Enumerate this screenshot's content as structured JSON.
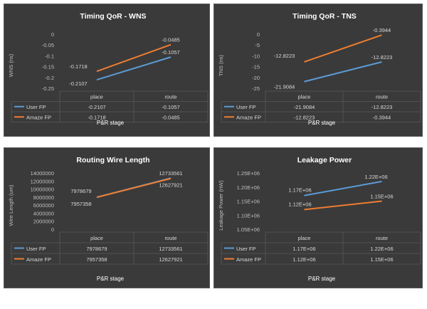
{
  "chart_data": [
    {
      "type": "line",
      "title": "Timing QoR - WNS",
      "ylabel": "WNS (ns)",
      "xlabel": "P&R stage",
      "categories": [
        "place",
        "route"
      ],
      "yticks": [
        "0",
        "-0.05",
        "-0.1",
        "-0.15",
        "-0.2",
        "-0.25"
      ],
      "ylim": [
        -0.25,
        0
      ],
      "series": [
        {
          "name": "User FP",
          "color": "#5b9bd5",
          "values": [
            -0.2107,
            -0.1057
          ],
          "labels": [
            "-0.2107",
            "-0.1057"
          ]
        },
        {
          "name": "Amaze FP",
          "color": "#ed7d31",
          "values": [
            -0.1718,
            -0.0485
          ],
          "labels": [
            "-0.1718",
            "-0.0485"
          ]
        }
      ]
    },
    {
      "type": "line",
      "title": "Timing QoR - TNS",
      "ylabel": "TNS (ns)",
      "xlabel": "P&R stage",
      "categories": [
        "place",
        "route"
      ],
      "yticks": [
        "0",
        "-5",
        "-10",
        "-15",
        "-20",
        "-25"
      ],
      "ylim": [
        -25,
        0
      ],
      "series": [
        {
          "name": "User FP",
          "color": "#5b9bd5",
          "values": [
            -21.9084,
            -12.8223
          ],
          "labels": [
            "-21.9084",
            "-12.8223"
          ]
        },
        {
          "name": "Amaze FP",
          "color": "#ed7d31",
          "values": [
            -12.8223,
            -0.3944
          ],
          "labels": [
            "-12.8223",
            "-0.3944"
          ]
        }
      ]
    },
    {
      "type": "line",
      "title": "Routing Wire Length",
      "ylabel": "Wire Length (um)",
      "xlabel": "P&R stage",
      "categories": [
        "place",
        "route"
      ],
      "yticks": [
        "14000000",
        "12000000",
        "10000000",
        "8000000",
        "6000000",
        "4000000",
        "2000000",
        "0"
      ],
      "ylim": [
        0,
        14000000
      ],
      "series": [
        {
          "name": "User FP",
          "color": "#5b9bd5",
          "values": [
            7978679,
            12733561
          ],
          "labels": [
            "7978679",
            "12733561"
          ]
        },
        {
          "name": "Amaze FP",
          "color": "#ed7d31",
          "values": [
            7957358,
            12627921
          ],
          "labels": [
            "7957358",
            "12627921"
          ]
        }
      ]
    },
    {
      "type": "line",
      "title": "Leakage Power",
      "ylabel": "Leakage Power (nW)",
      "xlabel": "P&R stage",
      "categories": [
        "place",
        "route"
      ],
      "yticks": [
        "1.25E+06",
        "1.20E+06",
        "1.15E+06",
        "1.10E+06",
        "1.05E+06"
      ],
      "ylim": [
        1050000,
        1250000
      ],
      "series": [
        {
          "name": "User FP",
          "color": "#5b9bd5",
          "values": [
            1170000,
            1220000
          ],
          "labels": [
            "1.17E+06",
            "1.22E+06"
          ]
        },
        {
          "name": "Amaze FP",
          "color": "#ed7d31",
          "values": [
            1120000,
            1150000
          ],
          "labels": [
            "1.12E+06",
            "1.15E+06"
          ]
        }
      ]
    }
  ]
}
